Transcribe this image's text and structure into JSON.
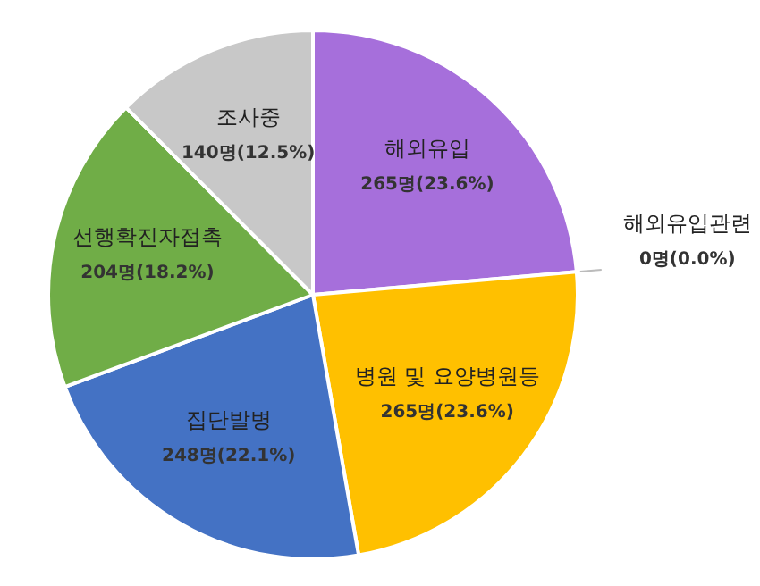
{
  "chart_data": {
    "type": "pie",
    "categories": [
      "해외유입",
      "해외유입관련",
      "병원 및 요양병원등",
      "집단발병",
      "선행확진자접촉",
      "조사중"
    ],
    "values": [
      265,
      0,
      265,
      248,
      204,
      140
    ],
    "value_labels": [
      "265명(23.6%)",
      "0명(0.0%)",
      "265명(23.6%)",
      "248명(22.1%)",
      "204명(18.2%)",
      "140명(12.5%)"
    ],
    "colors": [
      "#a66fdb",
      "#ed7d31",
      "#ffc000",
      "#4472c4",
      "#70ad47",
      "#c8c8c8"
    ]
  }
}
